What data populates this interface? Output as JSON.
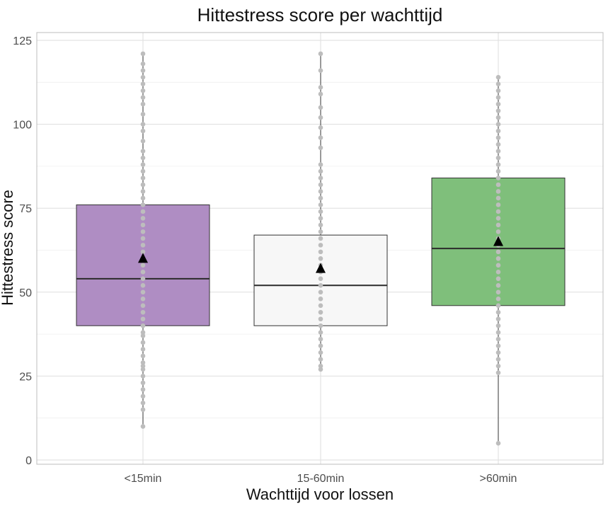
{
  "chart_data": {
    "type": "boxplot",
    "title": "Hittestress score per wachttijd",
    "xlabel": "Wachttijd voor lossen",
    "ylabel": "Hittestress score",
    "ylim": [
      0,
      125
    ],
    "yticks": [
      0,
      25,
      50,
      75,
      100,
      125
    ],
    "grid": true,
    "categories": [
      "<15min",
      "15-60min",
      ">60min"
    ],
    "boxes": [
      {
        "category": "<15min",
        "min": 10,
        "q1": 40,
        "median": 54,
        "q3": 76,
        "max": 121,
        "mean": 60,
        "fill": "#af8dc3"
      },
      {
        "category": "15-60min",
        "min": 27,
        "q1": 40,
        "median": 52,
        "q3": 67,
        "max": 121,
        "mean": 57,
        "fill": "#f7f7f7"
      },
      {
        "category": ">60min",
        "min": 5,
        "q1": 46,
        "median": 63,
        "q3": 84,
        "max": 114,
        "mean": 65,
        "fill": "#7fbf7b"
      }
    ],
    "points": [
      {
        "category": "<15min",
        "values": [
          10,
          15,
          17,
          19,
          21,
          23,
          25,
          27,
          28,
          29,
          31,
          33,
          35,
          37,
          38,
          40,
          42,
          44,
          46,
          48,
          50,
          52,
          54,
          56,
          58,
          60,
          62,
          64,
          66,
          68,
          70,
          72,
          74,
          76,
          78,
          80,
          82,
          84,
          86,
          88,
          90,
          92,
          95,
          98,
          100,
          103,
          106,
          108,
          110,
          112,
          114,
          116,
          118,
          121
        ]
      },
      {
        "category": "15-60min",
        "values": [
          27,
          28,
          30,
          32,
          34,
          36,
          38,
          40,
          42,
          44,
          46,
          48,
          50,
          52,
          54,
          56,
          58,
          60,
          62,
          64,
          66,
          68,
          70,
          72,
          74,
          76,
          78,
          80,
          82,
          84,
          86,
          88,
          93,
          96,
          99,
          102,
          105,
          109,
          111,
          116,
          121
        ]
      },
      {
        "category": ">60min",
        "values": [
          5,
          26,
          28,
          30,
          32,
          34,
          36,
          38,
          40,
          42,
          44,
          46,
          48,
          50,
          52,
          54,
          56,
          58,
          60,
          62,
          64,
          66,
          68,
          70,
          72,
          74,
          76,
          78,
          80,
          82,
          84,
          86,
          88,
          90,
          92,
          94,
          96,
          98,
          100,
          102,
          104,
          106,
          108,
          110,
          112,
          114
        ]
      }
    ]
  }
}
